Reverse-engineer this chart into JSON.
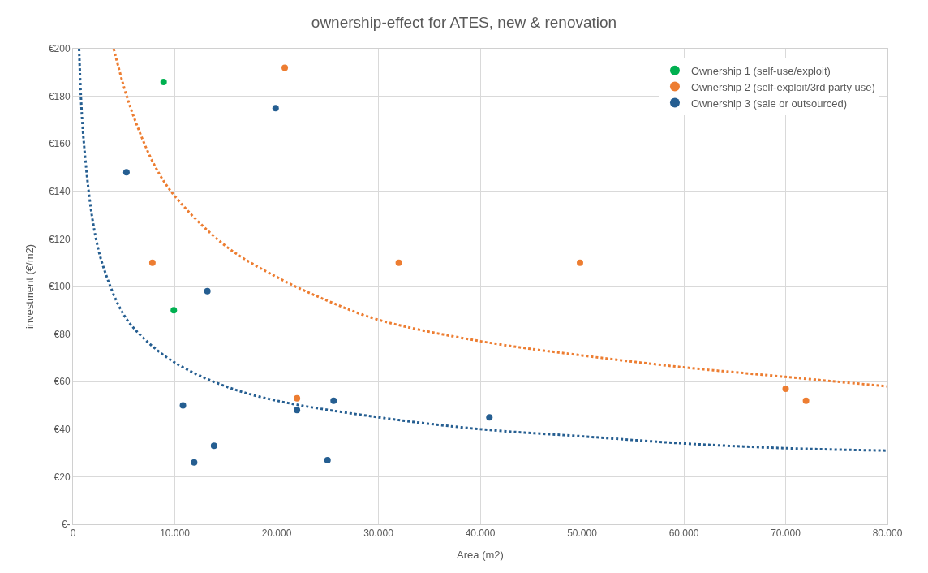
{
  "chart_data": {
    "type": "scatter",
    "title": "ownership-effect for ATES, new & renovation",
    "xlabel": "Area (m2)",
    "ylabel": "investment (€/m2)",
    "series": [
      {
        "name": "Ownership 1 (self-use/exploit)",
        "color": "#00b050",
        "x": [
          8900,
          9900
        ],
        "values": [
          186,
          90
        ]
      },
      {
        "name": "Ownership 2 (self-exploit/3rd party use)",
        "color": "#ed7d31",
        "x": [
          20800,
          7800,
          22000,
          32000,
          49800,
          70000,
          72000
        ],
        "values": [
          192,
          110,
          53,
          110,
          110,
          57,
          52
        ]
      },
      {
        "name": "Ownership 3 (sale or outsourced)",
        "color": "#255e91",
        "x": [
          19900,
          5250,
          13200,
          10800,
          13850,
          11900,
          22000,
          25600,
          25000,
          40900
        ],
        "values": [
          175,
          148,
          98,
          50,
          33,
          26,
          48,
          52,
          27,
          45
        ]
      },
      {
        "type": "line",
        "color": "#ed7d31",
        "line_style": "dotted",
        "marker": "none",
        "x": [
          4000,
          5000,
          6000,
          8000,
          10000,
          15000,
          20000,
          25000,
          30000,
          40000,
          50000,
          60000,
          70000,
          80000
        ],
        "values": [
          200,
          184,
          171,
          151,
          138,
          117,
          104,
          94,
          86,
          77,
          71,
          66,
          62,
          58
        ]
      },
      {
        "type": "line",
        "color": "#255e91",
        "line_style": "dotted",
        "marker": "none",
        "x": [
          600,
          1000,
          2000,
          3000,
          5000,
          7000,
          10000,
          15000,
          20000,
          30000,
          40000,
          50000,
          60000,
          70000,
          80000
        ],
        "values": [
          200,
          164,
          126,
          108,
          88,
          78,
          68,
          58,
          52,
          45,
          40,
          37,
          34,
          32,
          31
        ]
      }
    ],
    "marker": "circle",
    "grid": true,
    "legend": "top right",
    "xlim": [
      0,
      80000
    ],
    "xticks": [
      0,
      {
        "value": 10000,
        "label": "10.000"
      },
      {
        "value": 20000,
        "label": "20.000"
      },
      {
        "value": 30000,
        "label": "30.000"
      },
      {
        "value": 40000,
        "label": "40.000"
      },
      {
        "value": 50000,
        "label": "50.000"
      },
      {
        "value": 60000,
        "label": "60.000"
      },
      {
        "value": 70000,
        "label": "70.000"
      },
      {
        "value": 80000,
        "label": "80.000"
      }
    ],
    "ylim": [
      0,
      200
    ],
    "yticks": [
      {
        "value": 0,
        "label": "€-"
      },
      {
        "value": 20,
        "label": "€20"
      },
      {
        "value": 40,
        "label": "€40"
      },
      {
        "value": 60,
        "label": "€60"
      },
      {
        "value": 80,
        "label": "€80"
      },
      {
        "value": 100,
        "label": "€100"
      },
      {
        "value": 120,
        "label": "€120"
      },
      {
        "value": 140,
        "label": "€140"
      },
      {
        "value": 160,
        "label": "€160"
      },
      {
        "value": 180,
        "label": "€180"
      },
      {
        "value": 200,
        "label": "€200"
      }
    ]
  }
}
